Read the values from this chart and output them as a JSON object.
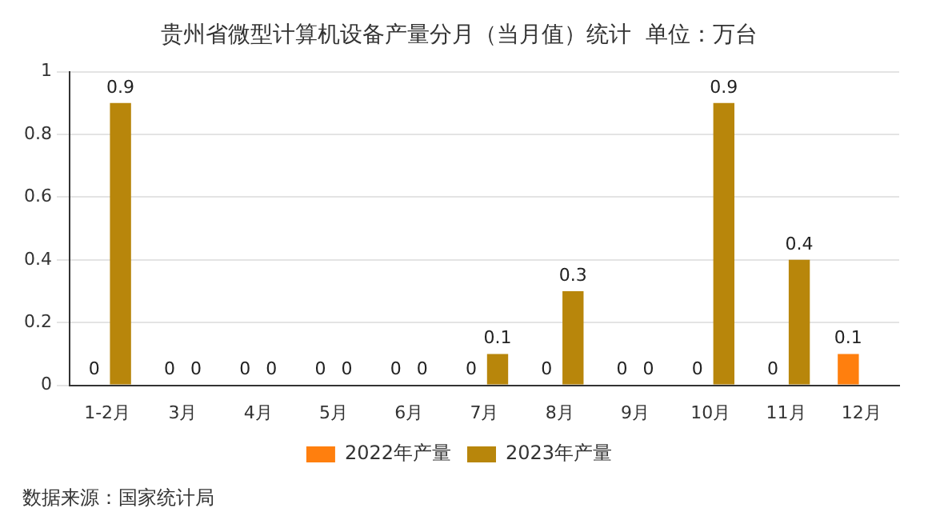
{
  "chart_data": {
    "type": "bar",
    "title": "贵州省微型计算机设备产量分月（当月值）统计  单位：万台",
    "categories": [
      "1-2月",
      "3月",
      "4月",
      "5月",
      "6月",
      "7月",
      "8月",
      "9月",
      "10月",
      "11月",
      "12月"
    ],
    "series": [
      {
        "name": "2022年产量",
        "color": "#ff7f0e",
        "values": [
          0,
          0,
          0,
          0,
          0,
          0,
          0,
          0,
          0,
          0,
          0.1
        ]
      },
      {
        "name": "2023年产量",
        "color": "#b8860b",
        "values": [
          0.9,
          0,
          0,
          0,
          0,
          0.1,
          0.3,
          0,
          0.9,
          0.4,
          null
        ]
      }
    ],
    "ylim": [
      0,
      1
    ],
    "yticks": [
      0,
      0.2,
      0.4,
      0.6,
      0.8,
      1
    ],
    "grid": "y",
    "legend": "bottom",
    "data_labels": true,
    "annotations": [
      "数据来源：国家统计局"
    ]
  }
}
